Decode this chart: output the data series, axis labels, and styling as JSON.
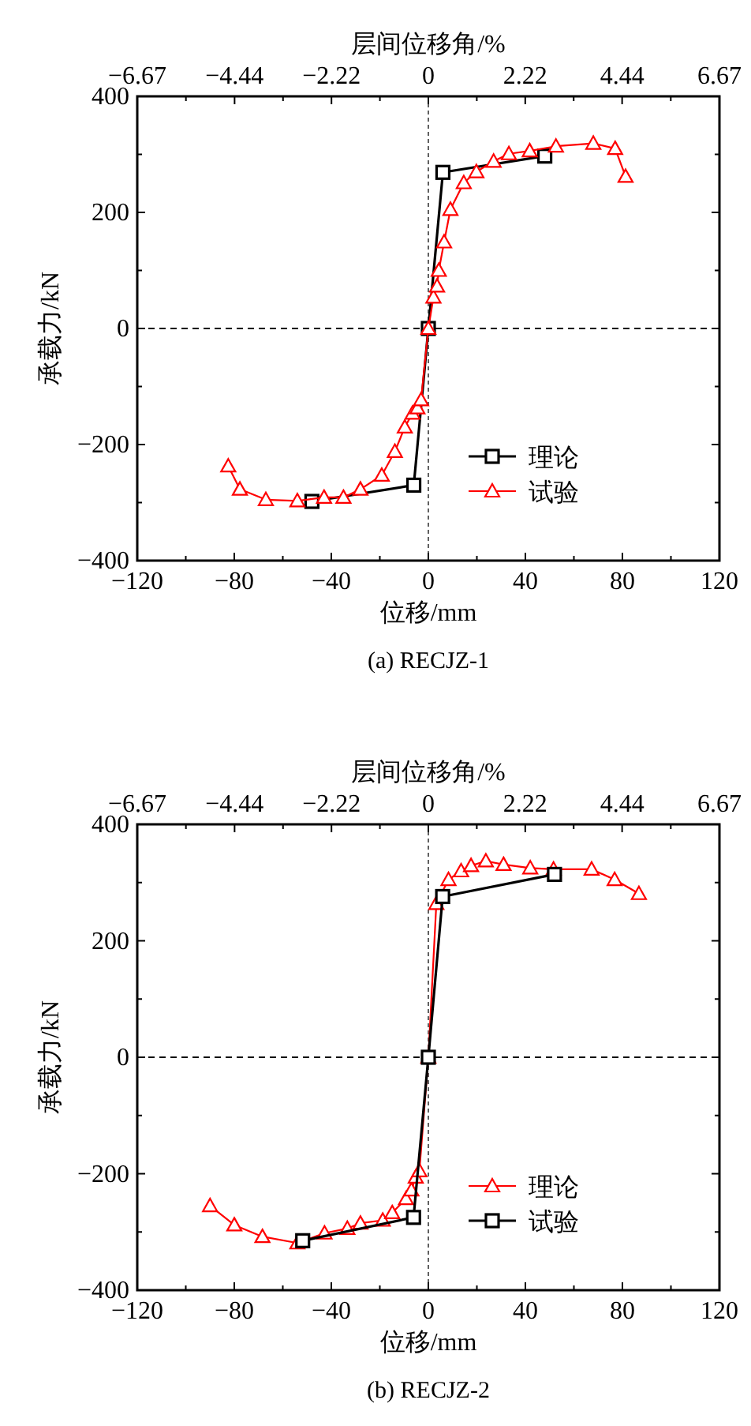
{
  "chart_data": [
    {
      "type": "line",
      "title": "(a) RECJZ-1",
      "xlabel": "位移/mm",
      "ylabel": "承载力/kN",
      "x2label": "层间位移角/%",
      "xlim": [
        -120,
        120
      ],
      "xticks": [
        -120,
        -80,
        -40,
        0,
        40,
        80,
        120
      ],
      "x2lim": [
        -6.67,
        6.67
      ],
      "x2ticks": [
        -6.67,
        -4.44,
        -2.22,
        0,
        2.22,
        4.44,
        6.67
      ],
      "ylim": [
        -400,
        400
      ],
      "yticks": [
        -400,
        -200,
        0,
        200,
        400
      ],
      "grid": false,
      "legend": "bottom right",
      "line_style": "solid",
      "ref_lines": [
        {
          "axis": "x",
          "value": 0,
          "color": "#606060",
          "line_style": "dotted"
        },
        {
          "axis": "y",
          "value": 0,
          "color": "#000000",
          "line_style": "dashed"
        }
      ],
      "series": [
        {
          "name": "理论",
          "color": "#000000",
          "marker": "square",
          "x": [
            -48,
            -6,
            0,
            6,
            48
          ],
          "values": [
            -298,
            -270,
            0,
            269,
            297
          ]
        },
        {
          "name": "试验",
          "color": "#ff0000",
          "marker": "triangle",
          "x": [
            -82.5,
            -77.7,
            -67,
            -54,
            -43,
            -35,
            -28,
            -19.2,
            -13.8,
            -9.7,
            -6.5,
            -4.5,
            -3,
            0,
            2.1,
            3.6,
            4.3,
            6.5,
            9.1,
            14.6,
            19.8,
            26.9,
            33.2,
            41.8,
            52.6,
            68,
            77,
            81.3
          ],
          "values": [
            -237,
            -277,
            -295,
            -297,
            -291,
            -291,
            -277,
            -253,
            -212,
            -170,
            -146,
            -137,
            -123,
            0,
            54,
            73,
            100,
            149,
            205,
            251,
            270,
            288,
            301,
            306,
            314,
            319,
            310,
            262
          ]
        }
      ]
    },
    {
      "type": "line",
      "title": "(b) RECJZ-2",
      "xlabel": "位移/mm",
      "ylabel": "承载力/kN",
      "x2label": "层间位移角/%",
      "xlim": [
        -120,
        120
      ],
      "xticks": [
        -120,
        -80,
        -40,
        0,
        40,
        80,
        120
      ],
      "x2lim": [
        -6.67,
        6.67
      ],
      "x2ticks": [
        -6.67,
        -4.44,
        -2.22,
        0,
        2.22,
        4.44,
        6.67
      ],
      "ylim": [
        -400,
        400
      ],
      "yticks": [
        -400,
        -200,
        0,
        200,
        400
      ],
      "grid": false,
      "legend": "bottom right",
      "line_style": "solid",
      "ref_lines": [
        {
          "axis": "x",
          "value": 0,
          "color": "#606060",
          "line_style": "dotted"
        },
        {
          "axis": "y",
          "value": 0,
          "color": "#000000",
          "line_style": "dashed"
        }
      ],
      "series": [
        {
          "name": "理论",
          "color": "#ff0000",
          "marker": "triangle",
          "x": [
            -90,
            -80,
            -68.4,
            -54,
            -42.8,
            -33.4,
            -28,
            -18.8,
            -14.9,
            -9.2,
            -7,
            -5.2,
            -3.7,
            0,
            3.3,
            8.3,
            13.5,
            17.6,
            23.7,
            31,
            42,
            51.6,
            67.3,
            76.8,
            86.8
          ],
          "values": [
            -255,
            -288,
            -308,
            -319,
            -302,
            -294,
            -285,
            -280,
            -267,
            -243,
            -228,
            -206,
            -195,
            0,
            264,
            305,
            320,
            329,
            337,
            331,
            325,
            323,
            323,
            305,
            281
          ]
        },
        {
          "name": "试验",
          "color": "#000000",
          "marker": "square",
          "x": [
            -51.8,
            -6.1,
            0,
            5.9,
            52
          ],
          "values": [
            -315,
            -275,
            0,
            276,
            314
          ]
        }
      ]
    }
  ]
}
